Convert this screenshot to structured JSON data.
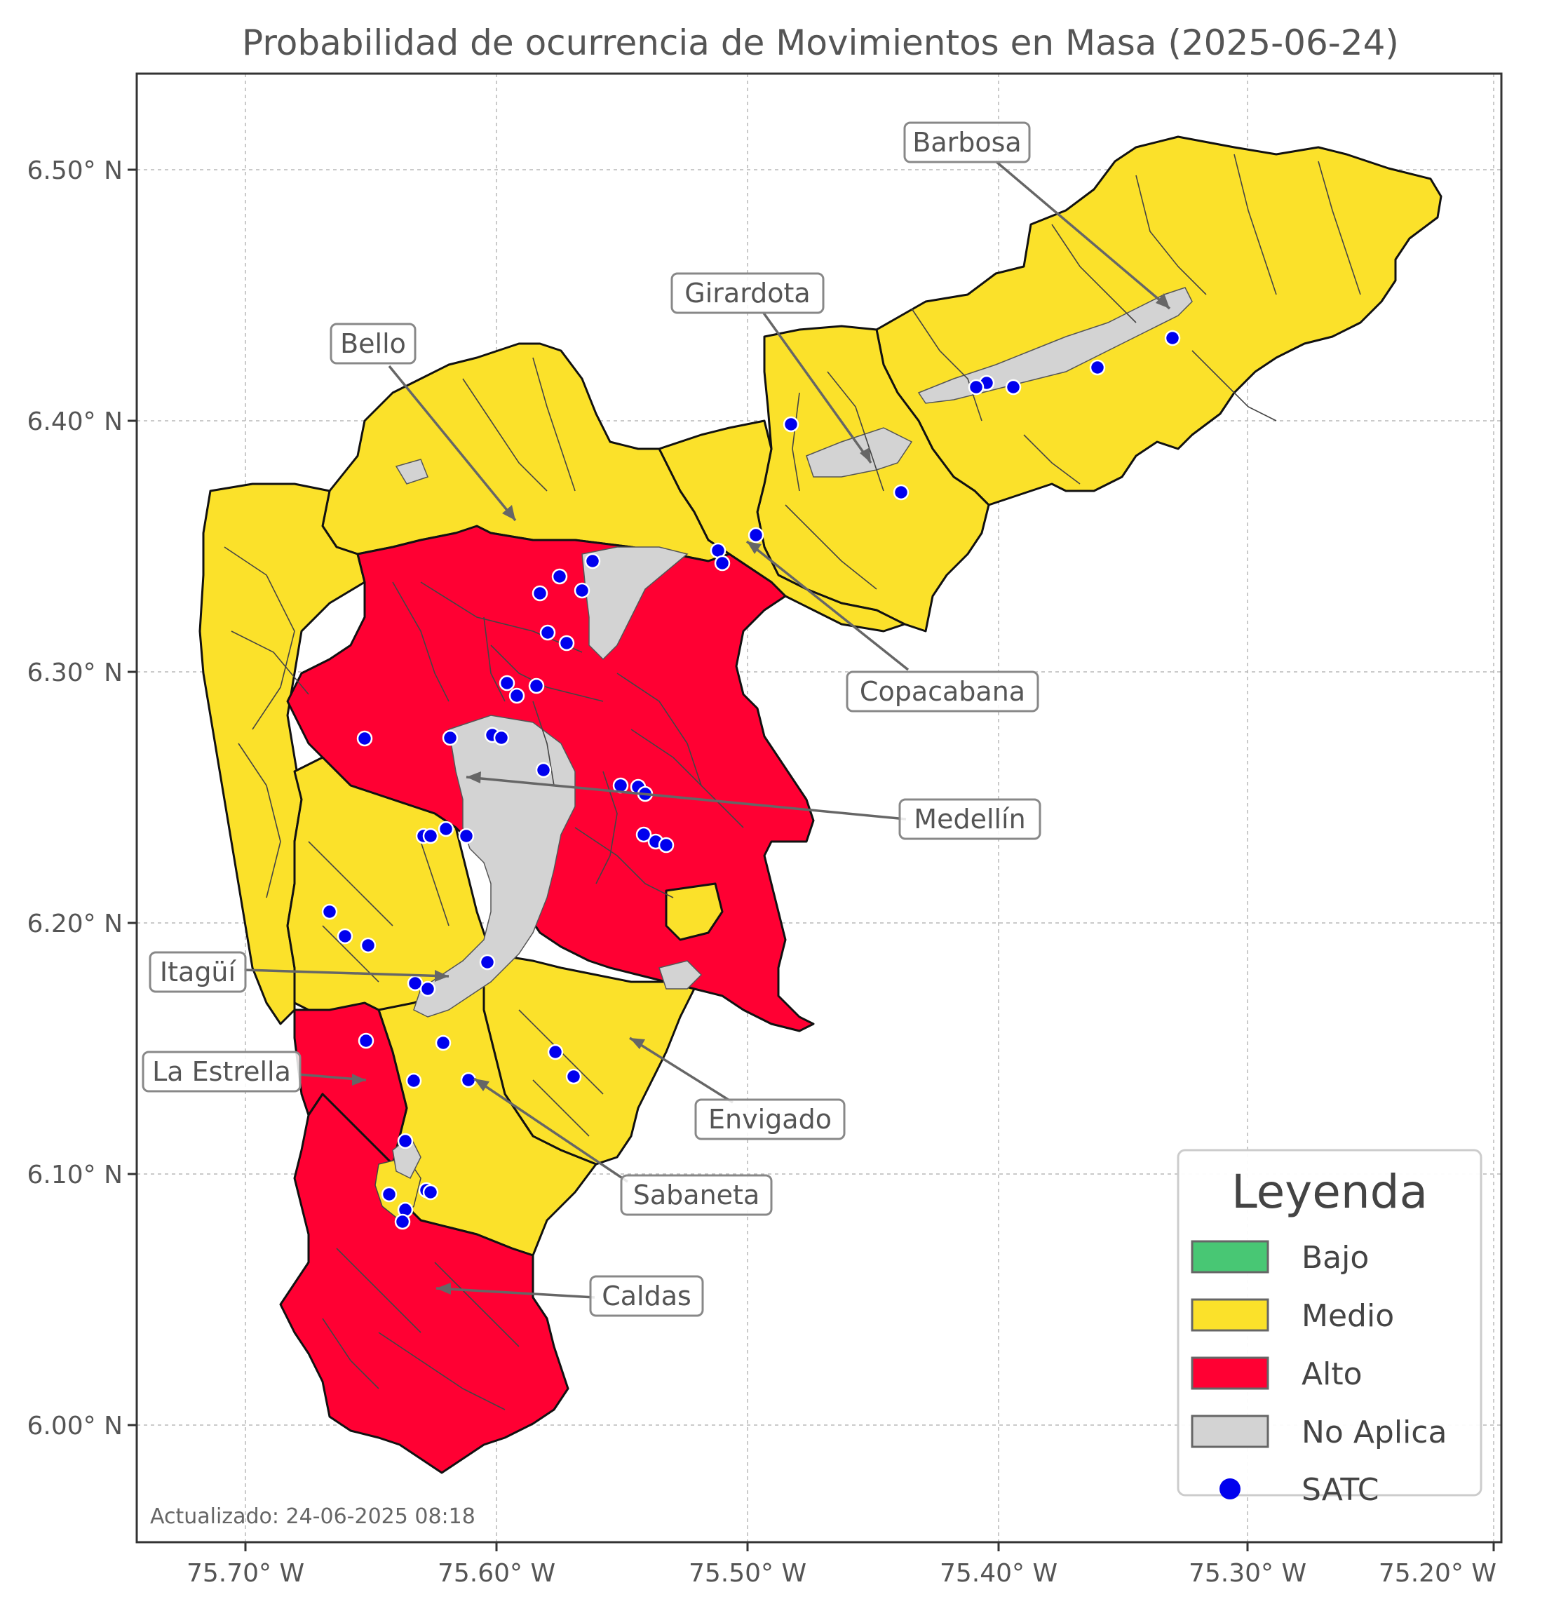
{
  "title": "Probabilidad de ocurrencia de Movimientos en Masa (2025-06-24)",
  "axes": {
    "x_ticks": [
      "75.70° W",
      "75.60° W",
      "75.50° W",
      "75.40° W",
      "75.30° W",
      "75.20° W"
    ],
    "y_ticks": [
      "6.50° N",
      "6.40° N",
      "6.30° N",
      "6.20° N",
      "6.10° N",
      "6.00° N"
    ]
  },
  "colors": {
    "Bajo": "#48c774",
    "Medio": "#fbe12a",
    "Alto": "#ff0033",
    "No Aplica": "#d3d3d3",
    "SATC": "#0000ee"
  },
  "municipalities": [
    {
      "name": "Barbosa",
      "level": "Medio"
    },
    {
      "name": "Girardota",
      "level": "Medio"
    },
    {
      "name": "Bello",
      "level": "Medio"
    },
    {
      "name": "Copacabana",
      "level": "Medio"
    },
    {
      "name": "Medellín",
      "level": "Alto"
    },
    {
      "name": "Itagüí",
      "level": "Medio"
    },
    {
      "name": "La Estrella",
      "level": "Alto"
    },
    {
      "name": "Envigado",
      "level": "Medio"
    },
    {
      "name": "Sabaneta",
      "level": "Medio"
    },
    {
      "name": "Caldas",
      "level": "Alto"
    }
  ],
  "legend": {
    "title": "Leyenda",
    "items": [
      {
        "label": "Bajo",
        "icon": "swatch"
      },
      {
        "label": "Medio",
        "icon": "swatch"
      },
      {
        "label": "Alto",
        "icon": "swatch"
      },
      {
        "label": "No Aplica",
        "icon": "swatch"
      },
      {
        "label": "SATC",
        "icon": "dot-icon"
      }
    ]
  },
  "updated_text": "Actualizado: 24-06-2025 08:18"
}
